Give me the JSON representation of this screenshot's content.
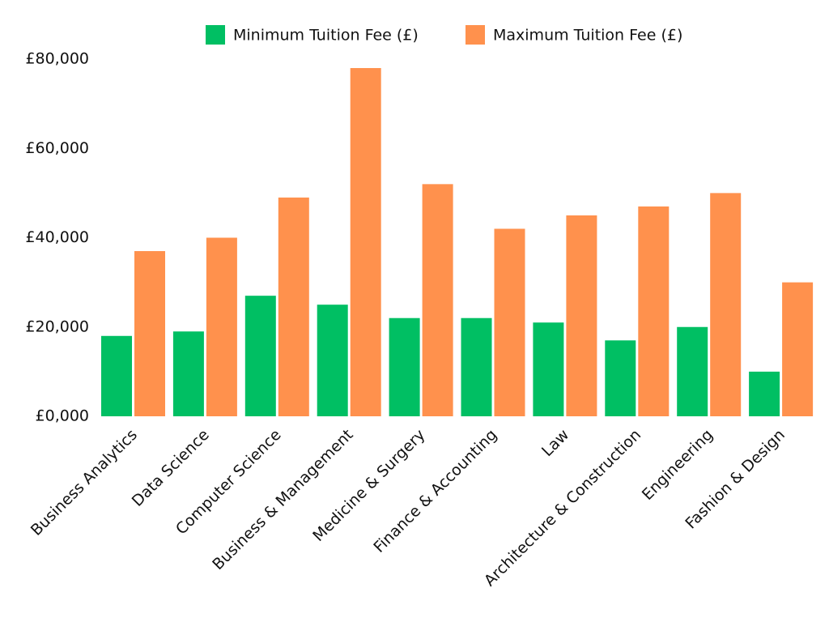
{
  "chart_data": {
    "type": "bar",
    "categories": [
      "Business Analytics",
      "Data Science",
      "Computer Science",
      "Business & Management",
      "Medicine & Surgery",
      "Finance & Accounting",
      "Law",
      "Architecture & Construction",
      "Engineering",
      "Fashion & Design"
    ],
    "series": [
      {
        "name": "Minimum Tuition Fee (£)",
        "color": "#00bf63",
        "values": [
          18000,
          19000,
          27000,
          25000,
          22000,
          22000,
          21000,
          17000,
          20000,
          10000
        ]
      },
      {
        "name": "Maximum Tuition Fee (£)",
        "color": "#ff914d",
        "values": [
          37000,
          40000,
          49000,
          78000,
          52000,
          42000,
          45000,
          47000,
          50000,
          30000
        ]
      }
    ],
    "ylim": [
      0,
      80000
    ],
    "yticks": [
      {
        "value": 0,
        "label": "£0,000"
      },
      {
        "value": 20000,
        "label": "£20,000"
      },
      {
        "value": 40000,
        "label": "£40,000"
      },
      {
        "value": 60000,
        "label": "£60,000"
      },
      {
        "value": 80000,
        "label": "£80,000"
      }
    ],
    "legend": "top"
  }
}
